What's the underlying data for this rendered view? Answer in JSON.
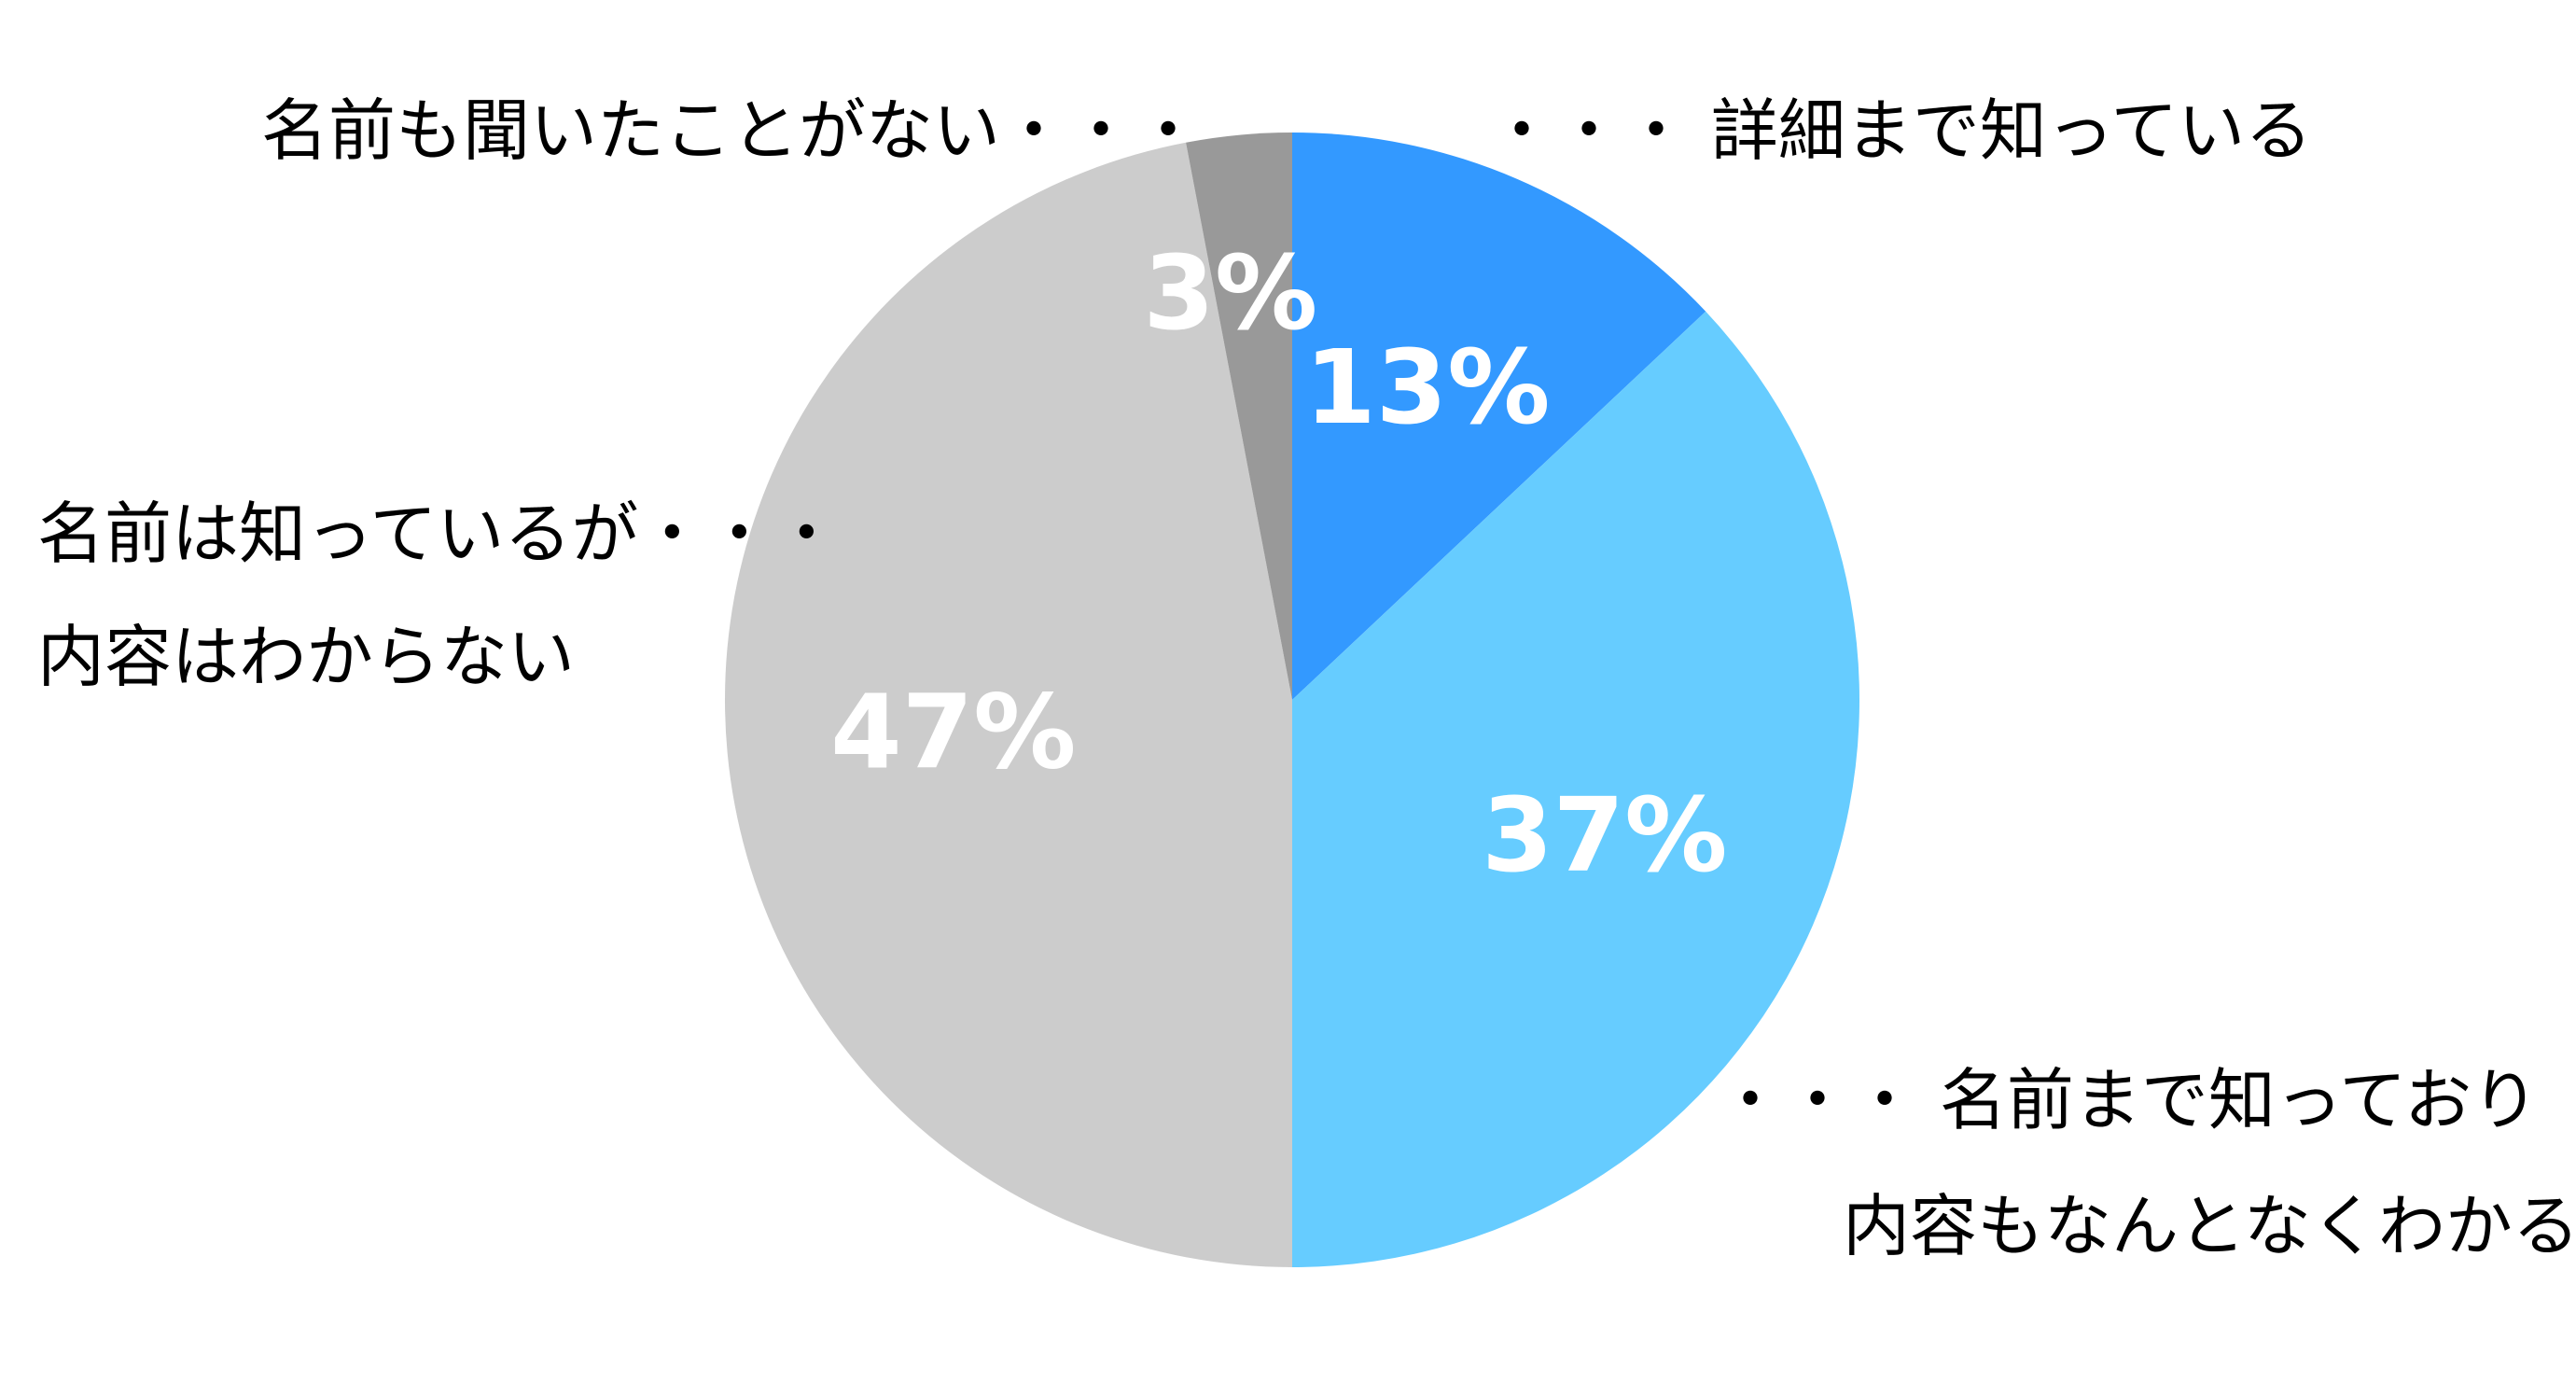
{
  "chart_data": {
    "type": "pie",
    "start_angle_deg": 0,
    "direction": "clockwise",
    "slices": [
      {
        "label_lines": [
          "・・・ 詳細まで知っている"
        ],
        "value": 13,
        "value_label": "13%",
        "color": "#3399FF"
      },
      {
        "label_lines": [
          "・・・ 名前まで知っており",
          "内容もなんとなくわかる"
        ],
        "value": 37,
        "value_label": "37%",
        "color": "#66CCFF"
      },
      {
        "label_lines": [
          "名前は知っているが・・・",
          "内容はわからない"
        ],
        "value": 47,
        "value_label": "47%",
        "color": "#CCCCCC"
      },
      {
        "label_lines": [
          "名前も聞いたことがない・・・"
        ],
        "value": 3,
        "value_label": "3%",
        "color": "#999999"
      }
    ]
  }
}
